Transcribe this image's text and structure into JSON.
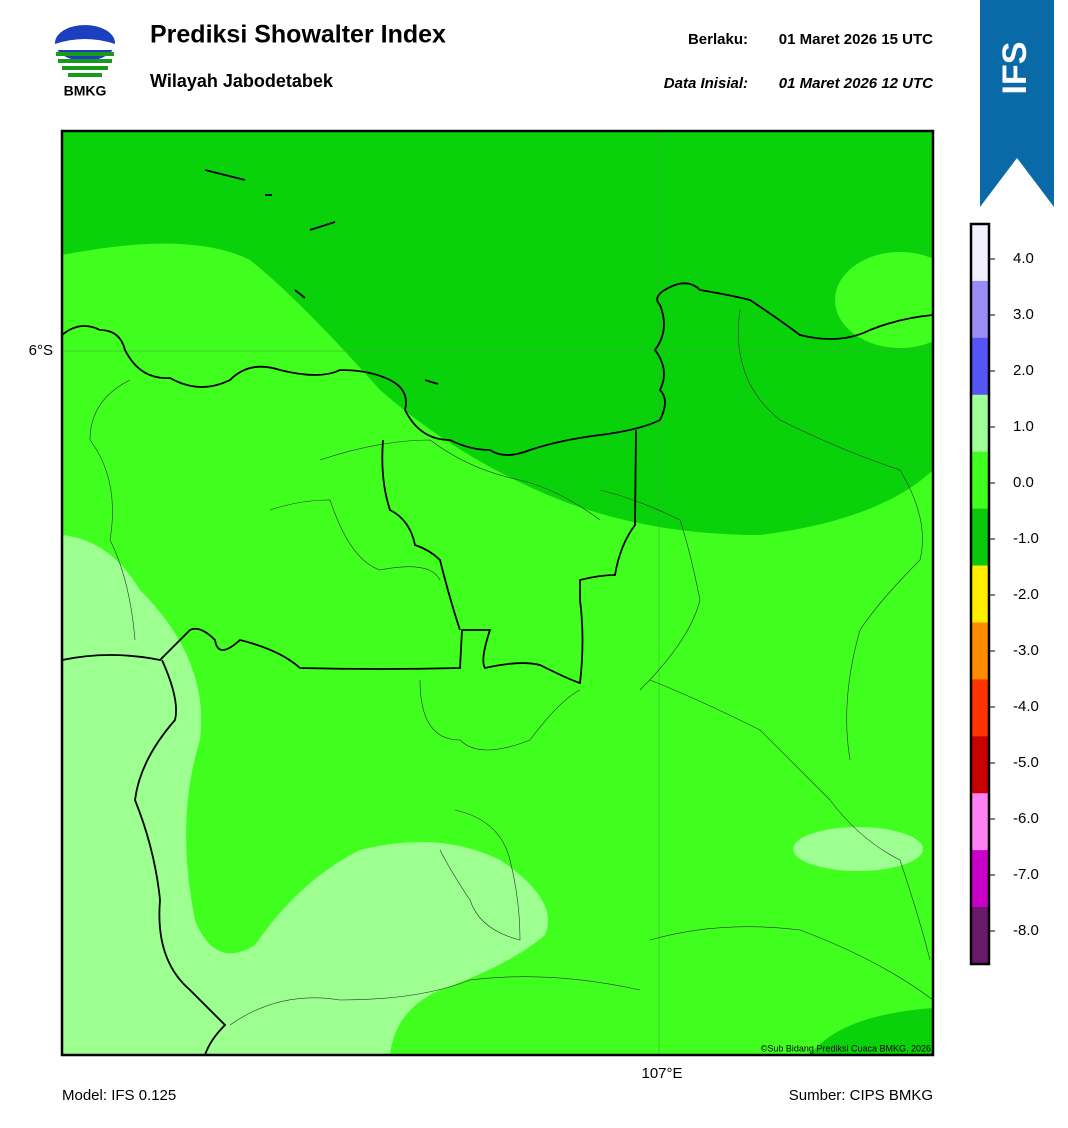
{
  "header": {
    "title": "Prediksi Showalter Index",
    "subtitle": "Wilayah Jabodetabek",
    "valid_label": "Berlaku:",
    "valid_time": "01 Maret 2026 15 UTC",
    "init_label": "Data Inisial:",
    "init_time": "01 Maret 2026 12 UTC",
    "logo_text": "BMKG",
    "badge": "IFS"
  },
  "map": {
    "lat_label": "6°S",
    "lon_label": "107°E",
    "credit": "©Sub Bidang Prediksi Cuaca BMKG, 2026"
  },
  "colorbar": {
    "labels": [
      "4.0",
      "3.0",
      "2.0",
      "1.0",
      "0.0",
      "-1.0",
      "-2.0",
      "-3.0",
      "-4.0",
      "-5.0",
      "-6.0",
      "-7.0",
      "-8.0"
    ],
    "colors": [
      "#f0f0ff",
      "#9a8cf5",
      "#5555f5",
      "#a0ff99",
      "#40ff1f",
      "#0ac80a",
      "#ffee00",
      "#ff8c00",
      "#ff3300",
      "#c80000",
      "#ff80f0",
      "#c800c8",
      "#6a1a6a"
    ]
  },
  "footer": {
    "model": "Model: IFS 0.125",
    "source": "Sumber: CIPS BMKG"
  }
}
